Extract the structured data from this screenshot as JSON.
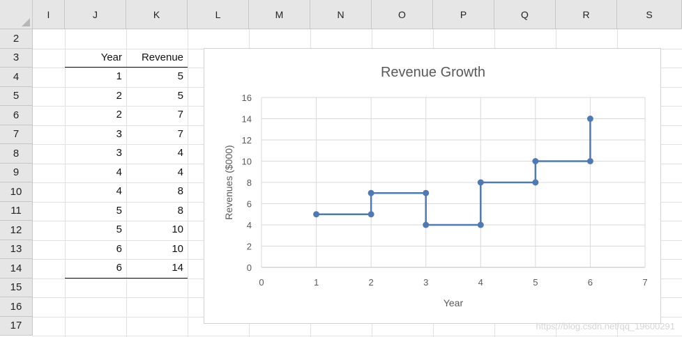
{
  "columns": [
    "I",
    "J",
    "K",
    "L",
    "M",
    "N",
    "O",
    "P",
    "Q",
    "R",
    "S"
  ],
  "rows": [
    "2",
    "3",
    "4",
    "5",
    "6",
    "7",
    "8",
    "9",
    "10",
    "11",
    "12",
    "13",
    "14",
    "15",
    "16",
    "17"
  ],
  "table": {
    "headers": [
      "Year",
      "Revenue"
    ],
    "rows": [
      {
        "year": "1",
        "revenue": "5"
      },
      {
        "year": "2",
        "revenue": "5"
      },
      {
        "year": "2",
        "revenue": "7"
      },
      {
        "year": "3",
        "revenue": "7"
      },
      {
        "year": "3",
        "revenue": "4"
      },
      {
        "year": "4",
        "revenue": "4"
      },
      {
        "year": "4",
        "revenue": "8"
      },
      {
        "year": "5",
        "revenue": "8"
      },
      {
        "year": "5",
        "revenue": "10"
      },
      {
        "year": "6",
        "revenue": "10"
      },
      {
        "year": "6",
        "revenue": "14"
      }
    ]
  },
  "chart_data": {
    "type": "line",
    "title": "Revenue Growth",
    "xlabel": "Year",
    "ylabel": "Revenues ($000)",
    "xlim": [
      0,
      7
    ],
    "ylim": [
      0,
      16
    ],
    "x_ticks": [
      0,
      1,
      2,
      3,
      4,
      5,
      6,
      7
    ],
    "y_ticks": [
      0,
      2,
      4,
      6,
      8,
      10,
      12,
      14,
      16
    ],
    "grid": true,
    "series_color": "#4f79b4",
    "points": [
      {
        "x": 1,
        "y": 5
      },
      {
        "x": 2,
        "y": 5
      },
      {
        "x": 2,
        "y": 7
      },
      {
        "x": 3,
        "y": 7
      },
      {
        "x": 3,
        "y": 4
      },
      {
        "x": 4,
        "y": 4
      },
      {
        "x": 4,
        "y": 8
      },
      {
        "x": 5,
        "y": 8
      },
      {
        "x": 5,
        "y": 10
      },
      {
        "x": 6,
        "y": 10
      },
      {
        "x": 6,
        "y": 14
      }
    ]
  },
  "watermark": "https://blog.csdn.net/qq_19600291"
}
